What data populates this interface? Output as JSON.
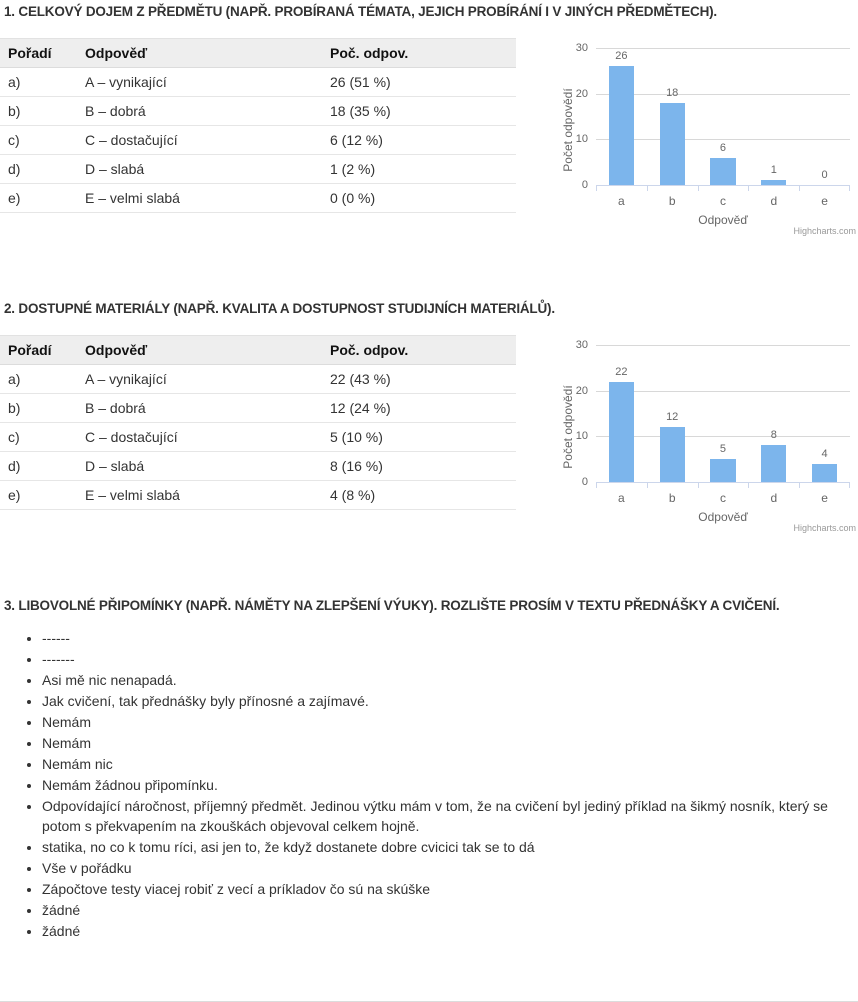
{
  "sections": [
    {
      "title": "1. CELKOVÝ DOJEM Z PŘEDMĚTU (NAPŘ. PROBÍRANÁ TÉMATA, JEJICH PROBÍRÁNÍ I V JINÝCH PŘEDMĚTECH).",
      "table": {
        "headers": [
          "Pořadí",
          "Odpověď",
          "Poč. odpov."
        ],
        "rows": [
          [
            "a)",
            "A – vynikající",
            "26 (51 %)"
          ],
          [
            "b)",
            "B – dobrá",
            "18 (35 %)"
          ],
          [
            "c)",
            "C – dostačující",
            "6 (12 %)"
          ],
          [
            "d)",
            "D – slabá",
            "1 (2 %)"
          ],
          [
            "e)",
            "E – velmi slabá",
            "0 (0 %)"
          ]
        ]
      }
    },
    {
      "title": "2. DOSTUPNÉ MATERIÁLY (NAPŘ. KVALITA A DOSTUPNOST STUDIJNÍCH MATERIÁLŮ).",
      "table": {
        "headers": [
          "Pořadí",
          "Odpověď",
          "Poč. odpov."
        ],
        "rows": [
          [
            "a)",
            "A – vynikající",
            "22 (43 %)"
          ],
          [
            "b)",
            "B – dobrá",
            "12 (24 %)"
          ],
          [
            "c)",
            "C – dostačující",
            "5 (10 %)"
          ],
          [
            "d)",
            "D – slabá",
            "8 (16 %)"
          ],
          [
            "e)",
            "E – velmi slabá",
            "4 (8 %)"
          ]
        ]
      }
    },
    {
      "title": "3. LIBOVOLNÉ PŘIPOMÍNKY (NAPŘ. NÁMĚTY NA ZLEPŠENÍ VÝUKY). ROZLIŠTE PROSÍM V TEXTU PŘEDNÁŠKY A CVIČENÍ.",
      "comments": [
        "------",
        "-------",
        "Asi mě nic nenapadá.",
        "Jak cvičení, tak přednášky byly přínosné a zajímavé.",
        "Nemám",
        "Nemám",
        "Nemám nic",
        "Nemám žádnou připomínku.",
        "Odpovídající náročnost, příjemný předmět. Jedinou výtku mám v tom, že na cvičení byl jediný příklad na šikmý nosník, který se potom s překvapením na zkouškách objevoval celkem hojně.",
        "statika, no co k tomu ríci, asi jen to, že když dostanete dobre cvicici tak se to dá",
        "Vše v pořádku",
        "Zápočtove testy viacej robiť z vecí a príkladov čo sú na skúške",
        "žádné",
        "žádné"
      ]
    }
  ],
  "chart_data": [
    {
      "type": "bar",
      "categories": [
        "a",
        "b",
        "c",
        "d",
        "e"
      ],
      "values": [
        26,
        18,
        6,
        1,
        0
      ],
      "title": "",
      "xlabel": "Odpověď",
      "ylabel": "Počet odpovědí",
      "ylim": [
        0,
        30
      ],
      "yticks": [
        0,
        10,
        20,
        30
      ],
      "grid": true,
      "legend": "none",
      "bar_color": "#7cb5ec",
      "grid_color": "#d8d8d8",
      "axis_line_color": "#ccd6eb",
      "label_color": "#666666",
      "credits": "Highcharts.com"
    },
    {
      "type": "bar",
      "categories": [
        "a",
        "b",
        "c",
        "d",
        "e"
      ],
      "values": [
        22,
        12,
        5,
        8,
        4
      ],
      "title": "",
      "xlabel": "Odpověď",
      "ylabel": "Počet odpovědí",
      "ylim": [
        0,
        30
      ],
      "yticks": [
        0,
        10,
        20,
        30
      ],
      "grid": true,
      "legend": "none",
      "bar_color": "#7cb5ec",
      "grid_color": "#d8d8d8",
      "axis_line_color": "#ccd6eb",
      "label_color": "#666666",
      "credits": "Highcharts.com"
    }
  ]
}
